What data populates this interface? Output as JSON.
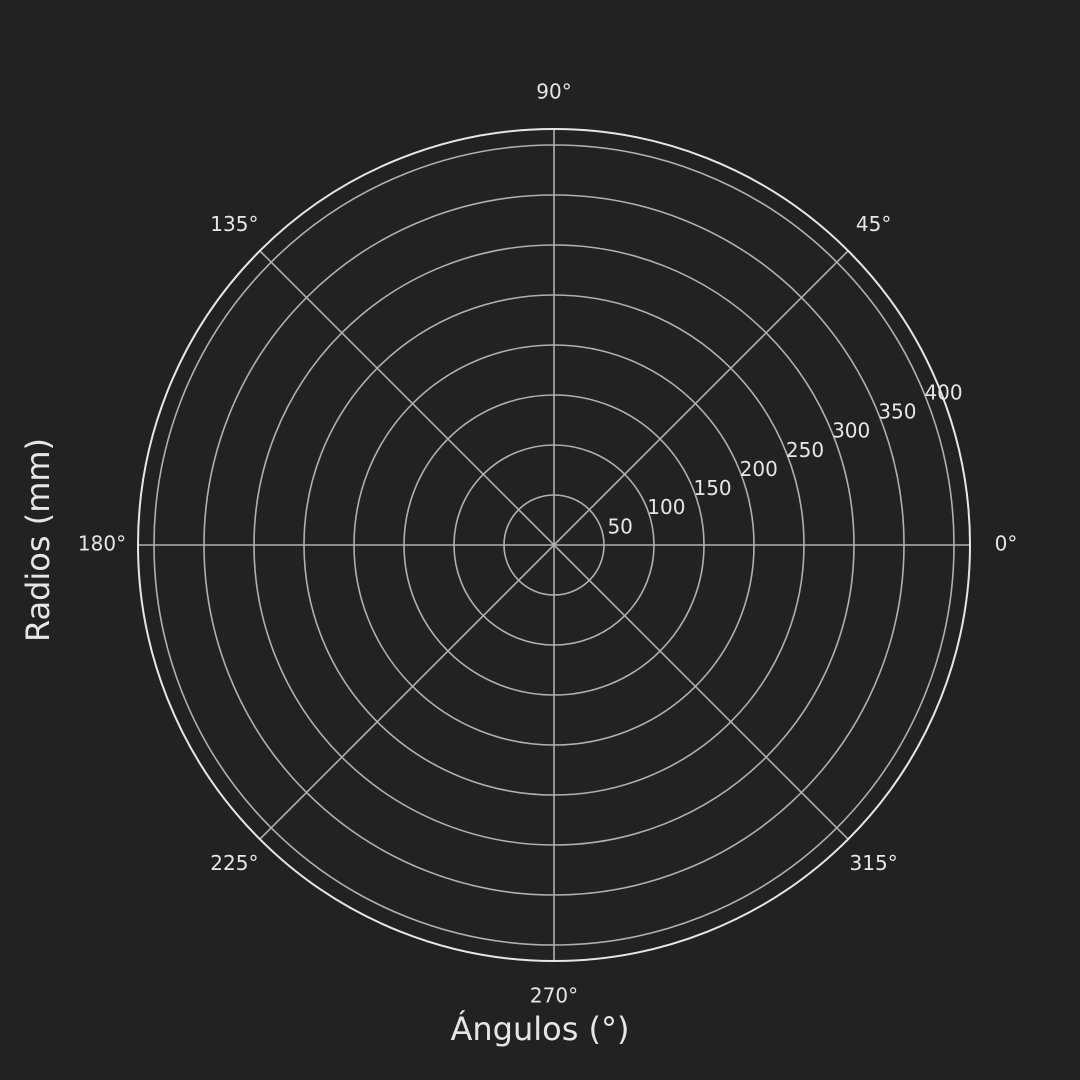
{
  "background_color": "#222222",
  "grid_color": "#b0b0b0",
  "text_color": "#e6e6e6",
  "chart_data": {
    "type": "polar",
    "title": "",
    "xlabel": "Ángulos (°)",
    "ylabel": "Radios (mm)",
    "theta_unit": "degrees",
    "theta_ticks": [
      0,
      45,
      90,
      135,
      180,
      225,
      270,
      315
    ],
    "theta_tick_labels": [
      "0°",
      "45°",
      "90°",
      "135°",
      "180°",
      "225°",
      "270°",
      "315°"
    ],
    "r_ticks": [
      50,
      100,
      150,
      200,
      250,
      300,
      350,
      400
    ],
    "r_tick_labels": [
      "50",
      "100",
      "150",
      "200",
      "250",
      "300",
      "350",
      "400"
    ],
    "r_tick_label_angle": 22.5,
    "rlim": [
      0,
      416
    ],
    "grid": true,
    "series": []
  }
}
